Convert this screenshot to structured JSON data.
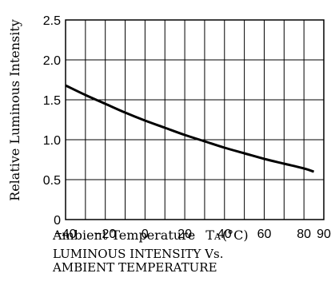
{
  "chart_data": {
    "type": "line",
    "ylabel": "Relative Luminous Intensity",
    "xlabel": "Ambient Temperature",
    "xlabel_symbol": "T",
    "xlabel_subscript": "A",
    "xlabel_unit": "(°C)",
    "caption_line1": "LUMINOUS INTENSITY Vs.",
    "caption_line2": "AMBIENT TEMPERATURE",
    "xlim": [
      -40,
      90
    ],
    "ylim": [
      0,
      2.5
    ],
    "x_tick_labels": [
      {
        "value": -40,
        "label": "−40"
      },
      {
        "value": -20,
        "label": "−20"
      },
      {
        "value": 0,
        "label": "0"
      },
      {
        "value": 20,
        "label": "20"
      },
      {
        "value": 40,
        "label": "40"
      },
      {
        "value": 60,
        "label": "60"
      },
      {
        "value": 80,
        "label": "80"
      },
      {
        "value": 90,
        "label": "90"
      }
    ],
    "y_tick_labels": [
      {
        "value": 0,
        "label": "0"
      },
      {
        "value": 0.5,
        "label": "0.5"
      },
      {
        "value": 1.0,
        "label": "1.0"
      },
      {
        "value": 1.5,
        "label": "1.5"
      },
      {
        "value": 2.0,
        "label": "2.0"
      },
      {
        "value": 2.5,
        "label": "2.5"
      }
    ],
    "x_grid": [
      -40,
      -30,
      -20,
      -10,
      0,
      10,
      20,
      30,
      40,
      50,
      60,
      70,
      80,
      90
    ],
    "y_grid": [
      0,
      0.5,
      1.0,
      1.5,
      2.0,
      2.5
    ],
    "grid": true,
    "series": [
      {
        "x": [
          -40,
          -30,
          -20,
          -10,
          0,
          10,
          20,
          30,
          40,
          50,
          60,
          70,
          80,
          85
        ],
        "y": [
          1.68,
          1.56,
          1.45,
          1.34,
          1.24,
          1.15,
          1.06,
          0.98,
          0.9,
          0.83,
          0.76,
          0.7,
          0.64,
          0.6
        ]
      }
    ],
    "line_color": "#000000"
  }
}
